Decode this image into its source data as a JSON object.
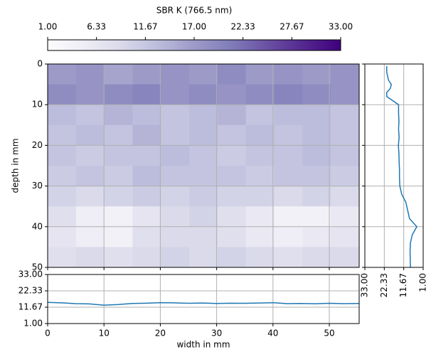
{
  "chart_data": [
    {
      "type": "heatmap",
      "colorbar_label": "SBR K (766.5 nm)",
      "ylabel": "depth in mm",
      "clim": [
        1,
        33
      ],
      "colorbar_ticks": [
        {
          "value": 1,
          "label": "1.00"
        },
        {
          "value": 6.33,
          "label": "6.33"
        },
        {
          "value": 11.67,
          "label": "11.67"
        },
        {
          "value": 17,
          "label": "17.00"
        },
        {
          "value": 22.33,
          "label": "22.33"
        },
        {
          "value": 27.67,
          "label": "27.67"
        },
        {
          "value": 33,
          "label": "33.00"
        }
      ],
      "colormap": [
        "#fcfbfd",
        "#efedf5",
        "#dadaeb",
        "#bcbddc",
        "#9e9ac8",
        "#807dba",
        "#6a51a3",
        "#54278f",
        "#3f007d"
      ],
      "xlim": [
        0,
        55.3
      ],
      "ylim": [
        50,
        0
      ],
      "xticks": [
        0,
        10,
        20,
        30,
        40,
        50
      ],
      "yticks": [
        0,
        10,
        20,
        30,
        40,
        50
      ],
      "grid": true,
      "z": [
        [
          17,
          18,
          16,
          17,
          18,
          17,
          19,
          17,
          18,
          17,
          18
        ],
        [
          19,
          18,
          19,
          20,
          18,
          19,
          18,
          19,
          20,
          19,
          18
        ],
        [
          13,
          12,
          14,
          13,
          12,
          13,
          14,
          12,
          13,
          13,
          12
        ],
        [
          12,
          13,
          12,
          14,
          12,
          13,
          12,
          13,
          12,
          13,
          12
        ],
        [
          12,
          11,
          12,
          12,
          13,
          12,
          11,
          12,
          12,
          13,
          12
        ],
        [
          11,
          12,
          11,
          13,
          12,
          12,
          12,
          11,
          12,
          12,
          11
        ],
        [
          10,
          9,
          10,
          11,
          10,
          11,
          10,
          10,
          9,
          10,
          9
        ],
        [
          8,
          5,
          4,
          7,
          9,
          10,
          8,
          6,
          4,
          4,
          6
        ],
        [
          7,
          5,
          4,
          8,
          9,
          9,
          8,
          6,
          5,
          6,
          7
        ],
        [
          8,
          9,
          8,
          9,
          10,
          9,
          10,
          9,
          8,
          9,
          9
        ]
      ]
    },
    {
      "type": "vprofile",
      "color": "#1f77b4",
      "xlim": [
        33,
        1
      ],
      "ylim": [
        50,
        0
      ],
      "grid": true,
      "xticks": [
        {
          "value": 33,
          "label": "33.00"
        },
        {
          "value": 22.33,
          "label": "22.33"
        },
        {
          "value": 11.67,
          "label": "11.67"
        },
        {
          "value": 1,
          "label": "1.00"
        }
      ],
      "yticks": [
        0,
        10,
        20,
        30,
        40,
        50
      ],
      "y": [
        0.5,
        2,
        4,
        5,
        6,
        7,
        8,
        10,
        12,
        14,
        16,
        18,
        20,
        22,
        24,
        26,
        28,
        30,
        32,
        34,
        36,
        38,
        40,
        42,
        44,
        46,
        48,
        50
      ],
      "values": [
        21,
        21,
        20,
        18.5,
        19,
        21,
        21,
        14.5,
        14.5,
        14.3,
        14.5,
        14.2,
        14.6,
        14.3,
        14.2,
        14,
        14,
        13.8,
        12.8,
        10.5,
        9.5,
        8.5,
        4.5,
        7,
        8,
        8.2,
        8.1,
        8
      ]
    },
    {
      "type": "line",
      "color": "#1f77b4",
      "xlabel": "width in mm",
      "xlim": [
        0,
        55.3
      ],
      "ylim": [
        1,
        33
      ],
      "grid": true,
      "xticks": [
        0,
        10,
        20,
        30,
        40,
        50
      ],
      "yticks": [
        {
          "value": 1,
          "label": "1.00"
        },
        {
          "value": 11.67,
          "label": "11.67"
        },
        {
          "value": 22.33,
          "label": "22.33"
        },
        {
          "value": 33,
          "label": "33.00"
        }
      ],
      "x": [
        0,
        2.5,
        5,
        7.5,
        10,
        12.5,
        15,
        17.5,
        20,
        22.5,
        25,
        27.5,
        30,
        32.5,
        35,
        37.5,
        40,
        42.5,
        45,
        47.5,
        50,
        52.5,
        55.3
      ],
      "values": [
        14.8,
        14.5,
        14,
        13.8,
        13,
        13.4,
        14.1,
        14.3,
        14.6,
        14.5,
        14.2,
        14.4,
        14.1,
        14.3,
        14.2,
        14.4,
        14.6,
        14,
        14.1,
        13.9,
        14.2,
        14,
        14.1
      ]
    }
  ]
}
